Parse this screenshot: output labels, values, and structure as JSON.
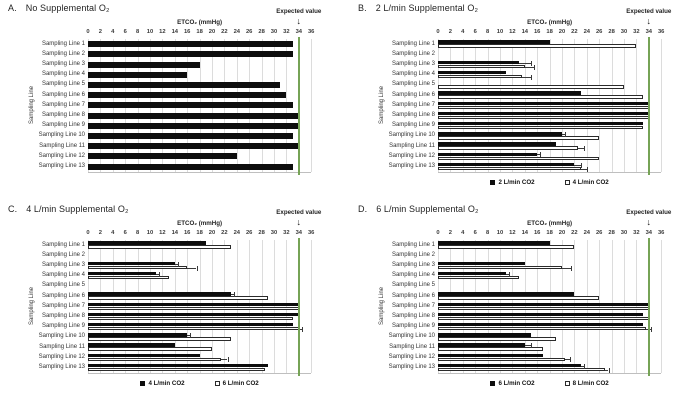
{
  "icons": {
    "down_arrow": "↓"
  },
  "colors": {
    "bar_series1": "#0d0d0d",
    "bar_series2": "#ffffff",
    "bar_outline": "#2b2b2b",
    "expected_line": "#76a356",
    "gridline": "#dcdcdc"
  },
  "chart_data": [
    {
      "panel_letter": "A.",
      "title": "No Supplemental O₂",
      "type": "bar",
      "orientation": "horizontal",
      "xlabel": "ETCO₂ (mmHg)",
      "ylabel": "Sampling Line",
      "annotation": "Expected value",
      "expected_value": 34,
      "xlim": [
        0,
        36
      ],
      "xticks": [
        0,
        2,
        4,
        6,
        8,
        10,
        12,
        14,
        16,
        18,
        20,
        22,
        24,
        26,
        28,
        30,
        32,
        34,
        36
      ],
      "grid": true,
      "legend": null,
      "categories": [
        "Sampling Line 1",
        "Sampling Line 2",
        "Sampling Line 3",
        "Sampling Line 4",
        "Sampling Line 5",
        "Sampling Line 6",
        "Sampling Line 7",
        "Sampling Line 8",
        "Sampling Line 9",
        "Sampling Line 10",
        "Sampling Line 11",
        "Sampling Line 12",
        "Sampling Line 13"
      ],
      "series": [
        {
          "name": "",
          "color": "#0d0d0d",
          "values": [
            33,
            33,
            18,
            16,
            31,
            32,
            33,
            34,
            34,
            33,
            34,
            24,
            33
          ],
          "errors": [
            0,
            0,
            0,
            0,
            0,
            0,
            0,
            0,
            0,
            0,
            0,
            0,
            0
          ]
        }
      ]
    },
    {
      "panel_letter": "B.",
      "title": "2 L/min Supplemental O₂",
      "type": "bar",
      "orientation": "horizontal",
      "xlabel": "ETCO₂ (mmHg)",
      "ylabel": "Sampling Line",
      "annotation": "Expected value",
      "expected_value": 34,
      "xlim": [
        0,
        36
      ],
      "xticks": [
        0,
        2,
        4,
        6,
        8,
        10,
        12,
        14,
        16,
        18,
        20,
        22,
        24,
        26,
        28,
        30,
        32,
        34,
        36
      ],
      "grid": true,
      "legend": [
        "2 L/min CO2",
        "4 L/min CO2"
      ],
      "categories": [
        "Sampling Line 1",
        "Sampling Line 2",
        "Sampling Line 3",
        "Sampling Line 4",
        "Sampling Line 5",
        "Sampling Line 6",
        "Sampling Line 7",
        "Sampling Line 8",
        "Sampling Line 9",
        "Sampling Line 10",
        "Sampling Line 11",
        "Sampling Line 12",
        "Sampling Line 13"
      ],
      "series": [
        {
          "name": "2 L/min CO2",
          "color": "#0d0d0d",
          "values": [
            18,
            0,
            13,
            11,
            0,
            23,
            34,
            34,
            33,
            20,
            19,
            16,
            22
          ],
          "errors": [
            0,
            0,
            2,
            0,
            0,
            0,
            0,
            0,
            0,
            0.5,
            0,
            0.5,
            1
          ]
        },
        {
          "name": "4 L/min CO2",
          "color": "#ffffff",
          "values": [
            32,
            0,
            14,
            13.5,
            30,
            33,
            34,
            34,
            33,
            26,
            22.5,
            26,
            23
          ],
          "errors": [
            0,
            0,
            1.5,
            1.5,
            0,
            0,
            0,
            0,
            0,
            0,
            1,
            0,
            1
          ]
        }
      ]
    },
    {
      "panel_letter": "C.",
      "title": "4 L/min Supplemental O₂",
      "type": "bar",
      "orientation": "horizontal",
      "xlabel": "ETCO₂ (mmHg)",
      "ylabel": "Sampling Line",
      "annotation": "Expected value",
      "expected_value": 34,
      "xlim": [
        0,
        36
      ],
      "xticks": [
        0,
        2,
        4,
        6,
        8,
        10,
        12,
        14,
        16,
        18,
        20,
        22,
        24,
        26,
        28,
        30,
        32,
        34,
        36
      ],
      "grid": true,
      "legend": [
        "4 L/min CO2",
        "6 L/min CO2"
      ],
      "categories": [
        "Sampling Line 1",
        "Sampling Line 2",
        "Sampling Line 3",
        "Sampling Line 4",
        "Sampling Line 5",
        "Sampling Line 6",
        "Sampling Line 7",
        "Sampling Line 8",
        "Sampling Line 9",
        "Sampling Line 10",
        "Sampling Line 11",
        "Sampling Line 12",
        "Sampling Line 13"
      ],
      "series": [
        {
          "name": "4 L/min CO2",
          "color": "#0d0d0d",
          "values": [
            19,
            0,
            14,
            11,
            0,
            23,
            34,
            34,
            33,
            16,
            14,
            18,
            29
          ],
          "errors": [
            0,
            0,
            0.5,
            0.5,
            0,
            0.5,
            0,
            0,
            0,
            0.5,
            0,
            0,
            0
          ]
        },
        {
          "name": "6 L/min CO2",
          "color": "#ffffff",
          "values": [
            23,
            0,
            16,
            13,
            0,
            29,
            34,
            33,
            34,
            23,
            20,
            21.5,
            28.5
          ],
          "errors": [
            0,
            0,
            1.5,
            0,
            0,
            0,
            0,
            0,
            0.5,
            0,
            0,
            1,
            0
          ]
        }
      ]
    },
    {
      "panel_letter": "D.",
      "title": "6 L/min Supplemental O₂",
      "type": "bar",
      "orientation": "horizontal",
      "xlabel": "ETCO₂ (mmHg)",
      "ylabel": "Sampling Line",
      "annotation": "Expected value",
      "expected_value": 34,
      "xlim": [
        0,
        36
      ],
      "xticks": [
        0,
        2,
        4,
        6,
        8,
        10,
        12,
        14,
        16,
        18,
        20,
        22,
        24,
        26,
        28,
        30,
        32,
        34,
        36
      ],
      "grid": true,
      "legend": [
        "6 L/min CO2",
        "8 L/min CO2"
      ],
      "categories": [
        "Sampling Line 1",
        "Sampling Line 2",
        "Sampling Line 3",
        "Sampling Line 4",
        "Sampling Line 5",
        "Sampling Line 6",
        "Sampling Line 7",
        "Sampling Line 8",
        "Sampling Line 9",
        "Sampling Line 10",
        "Sampling Line 11",
        "Sampling Line 12",
        "Sampling Line 13"
      ],
      "series": [
        {
          "name": "6 L/min CO2",
          "color": "#0d0d0d",
          "values": [
            18,
            0,
            14,
            11,
            0,
            22,
            34,
            33,
            33,
            15,
            14,
            17,
            23
          ],
          "errors": [
            0,
            0,
            0,
            0.5,
            0,
            0,
            0,
            0,
            0,
            0,
            1,
            0,
            0.5
          ]
        },
        {
          "name": "8 L/min CO2",
          "color": "#ffffff",
          "values": [
            22,
            0,
            20,
            13,
            0,
            26,
            34,
            34,
            33.5,
            19,
            17,
            20.5,
            27
          ],
          "errors": [
            0,
            0,
            1.5,
            0,
            0,
            0,
            0,
            0,
            0.8,
            0,
            0,
            0.8,
            0.5
          ]
        }
      ]
    }
  ]
}
